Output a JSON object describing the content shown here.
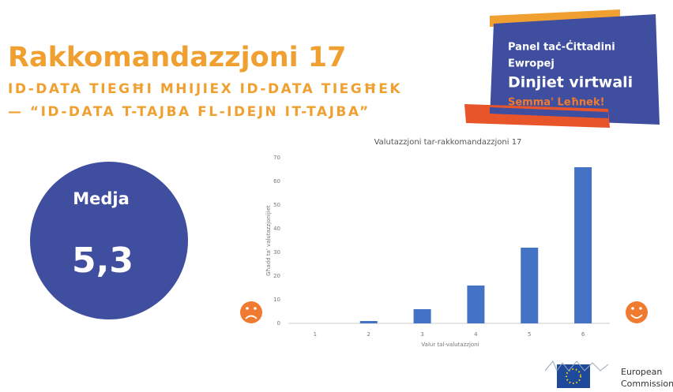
{
  "slide": {
    "title": "Rakkomandazzjoni 17",
    "subtitle_lines": [
      "ID-DATA TIEGĦI MHIJIEX ID-DATA TIEGĦEK",
      "— “ID-DATA T-TAJBA FL-IDEJN IT-TAJBA”"
    ],
    "panel_lines": [
      "Panel taċ-Ċittadini",
      "Ewropej"
    ],
    "panel_theme": "Dinjiet virtwali",
    "panel_slogan": "Semma' Leħnek!",
    "average_label": "Medja",
    "average_value": "5,3",
    "logo_lines": [
      "European",
      "Commission"
    ]
  },
  "chart_data": {
    "type": "bar",
    "title": "Valutazzjoni tar-rakkomandazzjoni 17",
    "categories": [
      "1",
      "2",
      "3",
      "4",
      "5",
      "6"
    ],
    "values": [
      0,
      1,
      6,
      16,
      32,
      66
    ],
    "color": "#4472c4",
    "xlabel": "Valur tal-valutazzjoni",
    "ylabel": "Għadd ta' valutazzjonijiet",
    "ylim": [
      0,
      70
    ],
    "yticks": [
      0,
      10,
      20,
      30,
      40,
      50,
      60,
      70
    ],
    "grid": false
  }
}
